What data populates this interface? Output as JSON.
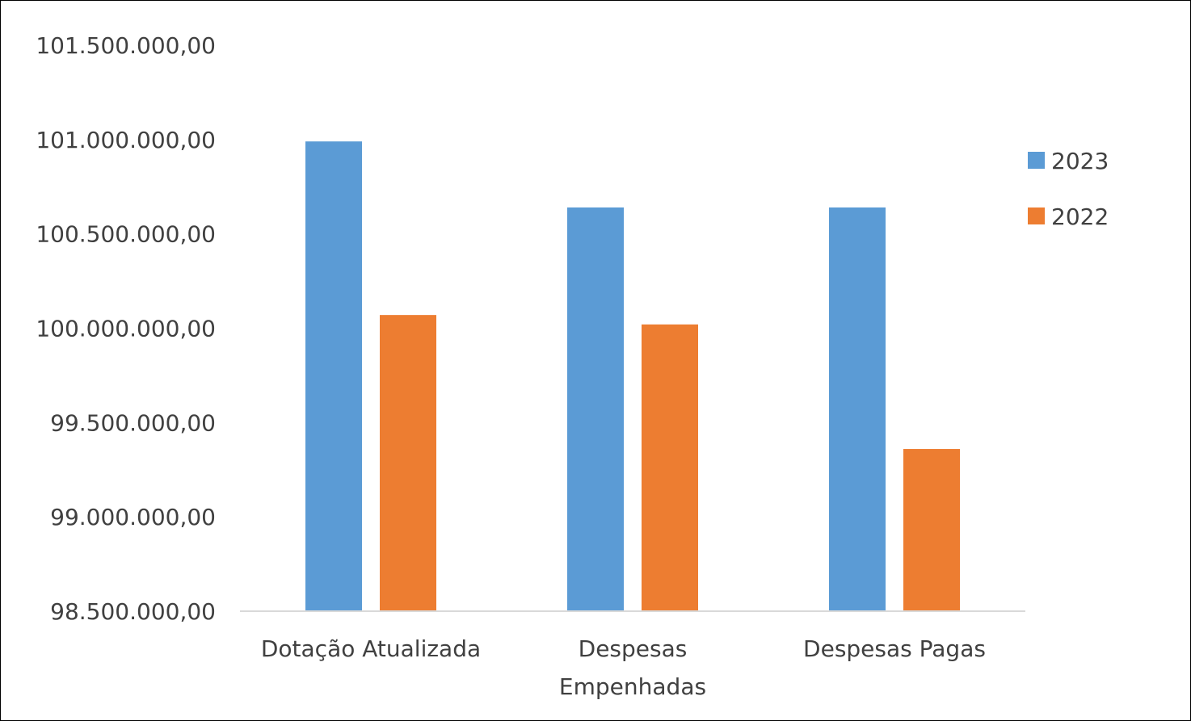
{
  "chart_data": {
    "type": "bar",
    "title": "",
    "xlabel": "",
    "ylabel": "",
    "categories": [
      [
        "Dotação Atualizada"
      ],
      [
        "Despesas",
        "Empenhadas"
      ],
      [
        "Despesas Pagas"
      ]
    ],
    "series": [
      {
        "name": "2023",
        "color": "#5B9BD5",
        "values": [
          100990000,
          100640000,
          100640000
        ]
      },
      {
        "name": "2022",
        "color": "#ED7D31",
        "values": [
          100070000,
          100020000,
          99360000
        ]
      }
    ],
    "ylim": [
      98500000,
      101500000
    ],
    "yticks": [
      {
        "value": 101500000,
        "label": "101.500.000,00"
      },
      {
        "value": 101000000,
        "label": "101.000.000,00"
      },
      {
        "value": 100500000,
        "label": "100.500.000,00"
      },
      {
        "value": 100000000,
        "label": "100.000.000,00"
      },
      {
        "value": 99500000,
        "label": "99.500.000,00"
      },
      {
        "value": 99000000,
        "label": "99.000.000,00"
      },
      {
        "value": 98500000,
        "label": "98.500.000,00"
      }
    ],
    "grid": false,
    "legend_position": "right"
  }
}
